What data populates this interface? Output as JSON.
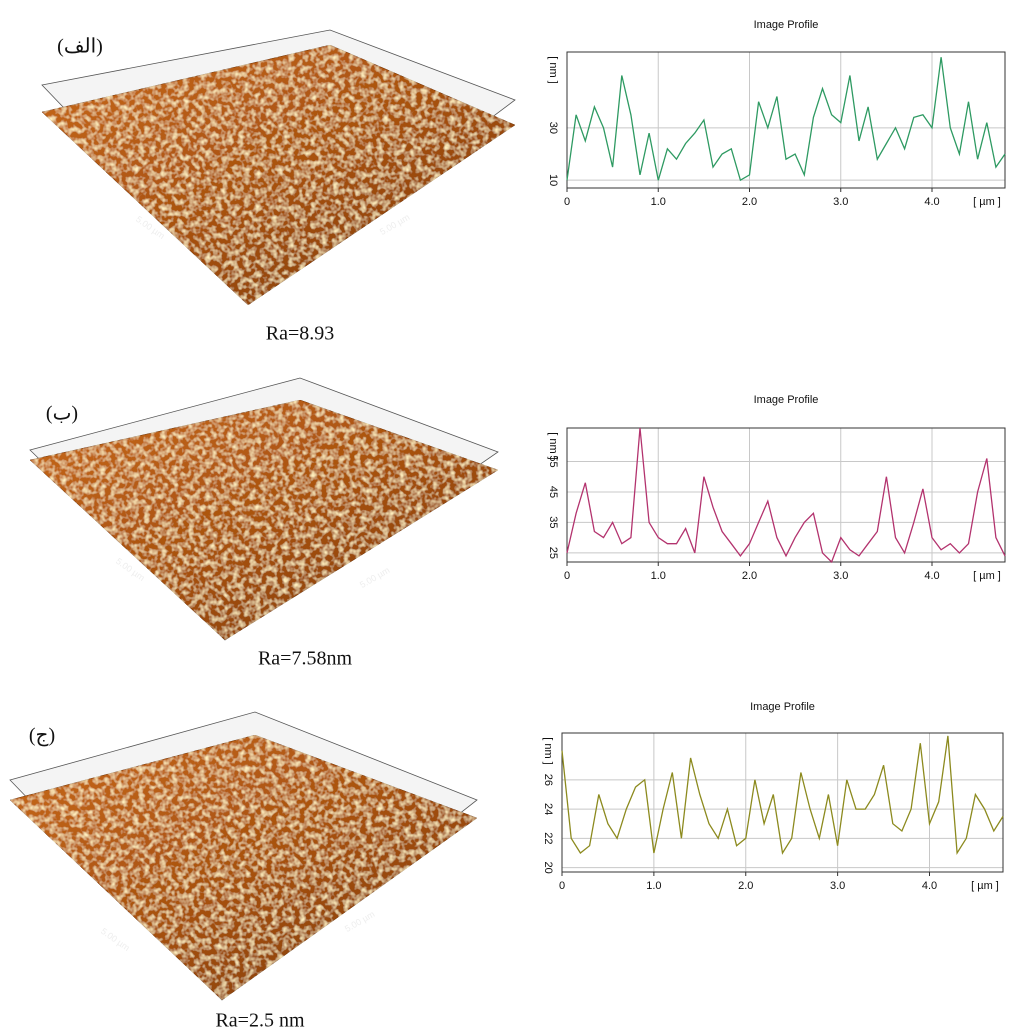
{
  "chart_data": [
    {
      "type": "line",
      "title": "Image Profile",
      "ylabel": "[ nm ]",
      "xlabel": "[ µm ]",
      "color": "#2e9a62",
      "panel_label": "(الف)",
      "caption": "Ra=8.93",
      "surface_labels": [
        "5.00 µm",
        "5.00 µm"
      ],
      "xlim": [
        0,
        4.8
      ],
      "ylim": [
        7,
        59
      ],
      "xticks": [
        0,
        {
          "value": 1,
          "label": "1.0"
        },
        {
          "value": 2,
          "label": "2.0"
        },
        {
          "value": 3,
          "label": "3.0"
        },
        {
          "value": 4,
          "label": "4.0"
        }
      ],
      "yticks": [
        10,
        30
      ],
      "grid": true,
      "x": [
        0,
        0.1,
        0.2,
        0.3,
        0.4,
        0.5,
        0.6,
        0.7,
        0.8,
        0.9,
        1,
        1.1,
        1.2,
        1.3,
        1.4,
        1.5,
        1.6,
        1.7,
        1.8,
        1.9,
        2,
        2.1,
        2.2,
        2.3,
        2.4,
        2.5,
        2.6,
        2.7,
        2.8,
        2.9,
        3,
        3.1,
        3.2,
        3.3,
        3.4,
        3.5,
        3.6,
        3.7,
        3.8,
        3.9,
        4,
        4.1,
        4.2,
        4.3,
        4.4,
        4.5,
        4.6,
        4.7,
        4.8
      ],
      "values": [
        10,
        35,
        25,
        38,
        30,
        15,
        50,
        35,
        12,
        28,
        10,
        22,
        18,
        24,
        28,
        33,
        15,
        20,
        22,
        10,
        12,
        40,
        30,
        42,
        18,
        20,
        12,
        34,
        45,
        35,
        32,
        50,
        25,
        38,
        18,
        24,
        30,
        22,
        34,
        35,
        30,
        57,
        30,
        20,
        40,
        18,
        32,
        15,
        20
      ]
    },
    {
      "type": "line",
      "title": "Image Profile",
      "ylabel": "[ nm ]",
      "xlabel": "[ µm ]",
      "color": "#b3336e",
      "panel_label": "(ب)",
      "caption": "Ra=7.58nm",
      "surface_labels": [
        "5.00 µm",
        "5.00 µm"
      ],
      "xlim": [
        0,
        4.8
      ],
      "ylim": [
        22,
        66
      ],
      "xticks": [
        0,
        {
          "value": 1,
          "label": "1.0"
        },
        {
          "value": 2,
          "label": "2.0"
        },
        {
          "value": 3,
          "label": "3.0"
        },
        {
          "value": 4,
          "label": "4.0"
        }
      ],
      "yticks": [
        25,
        35,
        45,
        55
      ],
      "grid": true,
      "x": [
        0,
        0.1,
        0.2,
        0.3,
        0.4,
        0.5,
        0.6,
        0.7,
        0.8,
        0.9,
        1,
        1.1,
        1.2,
        1.3,
        1.4,
        1.5,
        1.6,
        1.7,
        1.8,
        1.9,
        2,
        2.1,
        2.2,
        2.3,
        2.4,
        2.5,
        2.6,
        2.7,
        2.8,
        2.9,
        3,
        3.1,
        3.2,
        3.3,
        3.4,
        3.5,
        3.6,
        3.7,
        3.8,
        3.9,
        4,
        4.1,
        4.2,
        4.3,
        4.4,
        4.5,
        4.6,
        4.7,
        4.8
      ],
      "values": [
        25,
        38,
        48,
        32,
        30,
        35,
        28,
        30,
        66,
        35,
        30,
        28,
        28,
        33,
        25,
        50,
        40,
        32,
        28,
        24,
        28,
        35,
        42,
        30,
        24,
        30,
        35,
        38,
        25,
        22,
        30,
        26,
        24,
        28,
        32,
        50,
        30,
        25,
        35,
        46,
        30,
        26,
        28,
        25,
        28,
        45,
        56,
        30,
        24
      ]
    },
    {
      "type": "line",
      "title": "Image Profile",
      "ylabel": "[ nm ]",
      "xlabel": "[ µm ]",
      "color": "#8c8a1e",
      "panel_label": "(ج)",
      "caption": "Ra=2.5 nm",
      "surface_labels": [
        "5.00 µm",
        "5.00 µm"
      ],
      "xlim": [
        0,
        4.8
      ],
      "ylim": [
        19.7,
        29.2
      ],
      "xticks": [
        0,
        {
          "value": 1,
          "label": "1.0"
        },
        {
          "value": 2,
          "label": "2.0"
        },
        {
          "value": 3,
          "label": "3.0"
        },
        {
          "value": 4,
          "label": "4.0"
        }
      ],
      "yticks": [
        20,
        22,
        24,
        26
      ],
      "grid": true,
      "x": [
        0,
        0.1,
        0.2,
        0.3,
        0.4,
        0.5,
        0.6,
        0.7,
        0.8,
        0.9,
        1,
        1.1,
        1.2,
        1.3,
        1.4,
        1.5,
        1.6,
        1.7,
        1.8,
        1.9,
        2,
        2.1,
        2.2,
        2.3,
        2.4,
        2.5,
        2.6,
        2.7,
        2.8,
        2.9,
        3,
        3.1,
        3.2,
        3.3,
        3.4,
        3.5,
        3.6,
        3.7,
        3.8,
        3.9,
        4,
        4.1,
        4.2,
        4.3,
        4.4,
        4.5,
        4.6,
        4.7,
        4.8
      ],
      "values": [
        28,
        22,
        21,
        21.5,
        25,
        23,
        22,
        24,
        25.5,
        26,
        21,
        24,
        26.5,
        22,
        27.5,
        25,
        23,
        22,
        24,
        21.5,
        22,
        26,
        23,
        25,
        21,
        22,
        26.5,
        24,
        22,
        25,
        21.5,
        26,
        24,
        24,
        25,
        27,
        23,
        22.5,
        24,
        28.5,
        23,
        24.5,
        29,
        21,
        22,
        25,
        24,
        22.5,
        23.5
      ]
    }
  ]
}
